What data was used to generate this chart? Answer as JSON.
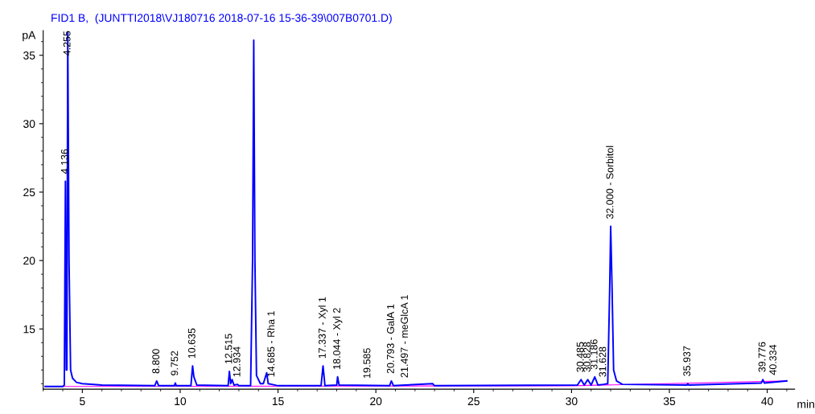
{
  "chart_data": {
    "type": "line",
    "title": "FID1 B,  (JUNTTI2018\\VJ180716 2018-07-16 15-36-39\\007B0701.D)",
    "xlabel": "min",
    "ylabel": "pA",
    "xlim": [
      3.0,
      41.4
    ],
    "ylim": [
      10.6,
      36.8
    ],
    "xticks": [
      5,
      10,
      15,
      20,
      25,
      30,
      35,
      40
    ],
    "yticks": [
      15,
      20,
      25,
      30,
      35
    ],
    "grid": false,
    "legend": false,
    "series": [
      {
        "color": "#0000ff",
        "x": [
          3.1,
          4.0,
          4.08,
          4.136,
          4.18,
          4.21,
          4.255,
          4.32,
          4.4,
          4.5,
          4.7,
          5.0,
          6.0,
          8.7,
          8.8,
          8.9,
          9.7,
          9.752,
          9.8,
          10.55,
          10.635,
          10.7,
          10.75,
          10.85,
          12.45,
          12.515,
          12.58,
          12.652,
          12.75,
          12.934,
          13.0,
          13.6,
          13.7,
          13.76,
          13.82,
          13.9,
          14.1,
          14.25,
          14.42,
          14.5,
          14.685,
          15.0,
          17.2,
          17.3,
          17.4,
          18.0,
          18.044,
          18.12,
          20.7,
          20.793,
          20.9,
          21.5,
          22.9,
          23.0,
          30.3,
          30.485,
          30.65,
          30.828,
          31.0,
          31.186,
          31.35,
          31.628,
          31.85,
          31.95,
          32.0,
          32.07,
          32.15,
          32.3,
          32.6,
          35.9,
          35.937,
          36.0,
          39.7,
          39.776,
          39.85,
          41.0
        ],
        "values": [
          10.8,
          10.8,
          10.9,
          25.8,
          12.0,
          12.0,
          36.7,
          20.0,
          12.0,
          11.4,
          11.1,
          11.0,
          10.9,
          10.85,
          11.2,
          10.85,
          10.85,
          11.05,
          10.85,
          10.85,
          12.3,
          11.5,
          11.3,
          10.9,
          10.85,
          11.9,
          11.0,
          11.3,
          10.9,
          10.95,
          10.85,
          10.85,
          20.0,
          36.1,
          20.0,
          11.6,
          11.0,
          11.0,
          11.8,
          11.0,
          10.95,
          10.85,
          10.85,
          12.3,
          10.85,
          10.9,
          11.5,
          10.9,
          10.85,
          11.2,
          10.85,
          10.9,
          11.0,
          10.85,
          10.9,
          11.3,
          10.9,
          11.3,
          10.9,
          11.5,
          10.9,
          10.95,
          11.0,
          18.0,
          22.5,
          18.0,
          12.0,
          11.2,
          10.95,
          10.9,
          11.0,
          10.9,
          11.05,
          11.3,
          11.05,
          11.2
        ]
      },
      {
        "color": "#ff00ff",
        "x": [
          3.1,
          30.0,
          41.0
        ],
        "values": [
          10.8,
          10.85,
          11.2
        ]
      }
    ],
    "annotations": [
      {
        "text": "4.136",
        "x": 4.136,
        "y": 25.8
      },
      {
        "text": "4.255",
        "x": 4.255,
        "y": 36.7
      },
      {
        "text": "8.800",
        "x": 8.8,
        "y": 11.2
      },
      {
        "text": "9.752",
        "x": 9.752,
        "y": 11.05
      },
      {
        "text": "10.635",
        "x": 10.635,
        "y": 12.3
      },
      {
        "text": "12.515",
        "x": 12.515,
        "y": 11.9
      },
      {
        "text": "12.934",
        "x": 12.934,
        "y": 10.95
      },
      {
        "text": "14.685 - Rha 1",
        "x": 14.685,
        "y": 10.95
      },
      {
        "text": "17.337 - Xyl 1",
        "x": 17.3,
        "y": 12.3
      },
      {
        "text": "18.044 - Xyl 2",
        "x": 18.044,
        "y": 11.5
      },
      {
        "text": "19.585",
        "x": 19.585,
        "y": 10.85
      },
      {
        "text": "20.793 - GalA 1",
        "x": 20.793,
        "y": 11.2
      },
      {
        "text": "21.497 - meGlcA 1",
        "x": 21.5,
        "y": 10.9
      },
      {
        "text": "30.485",
        "x": 30.485,
        "y": 11.3
      },
      {
        "text": "30.828",
        "x": 30.828,
        "y": 11.3
      },
      {
        "text": "31.186",
        "x": 31.186,
        "y": 11.5
      },
      {
        "text": "31.628",
        "x": 31.628,
        "y": 10.95
      },
      {
        "text": "32.000 - Sorbitol",
        "x": 32.0,
        "y": 22.5
      },
      {
        "text": "35.937",
        "x": 35.937,
        "y": 11.0
      },
      {
        "text": "39.776",
        "x": 39.776,
        "y": 11.3
      },
      {
        "text": "40.334",
        "x": 40.334,
        "y": 11.1
      }
    ]
  }
}
